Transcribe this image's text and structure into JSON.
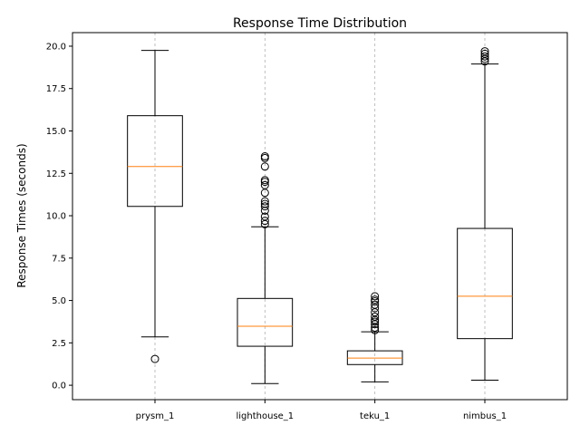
{
  "chart_data": {
    "type": "box",
    "title": "Response Time Distribution",
    "xlabel": "",
    "ylabel": "Response Times (seconds)",
    "ylim": [
      -0.85,
      20.8
    ],
    "yticks": [
      0.0,
      2.5,
      5.0,
      7.5,
      10.0,
      12.5,
      15.0,
      17.5,
      20.0
    ],
    "ytick_labels": [
      "0.0",
      "2.5",
      "5.0",
      "7.5",
      "10.0",
      "12.5",
      "15.0",
      "17.5",
      "20.0"
    ],
    "grid": "x-dashed",
    "categories": [
      "prysm_1",
      "lighthouse_1",
      "teku_1",
      "nimbus_1"
    ],
    "boxes": [
      {
        "whisker_low": 2.85,
        "q1": 10.55,
        "median": 12.9,
        "q3": 15.9,
        "whisker_high": 19.75,
        "outliers": [
          1.55
        ]
      },
      {
        "whisker_low": 0.1,
        "q1": 2.3,
        "median": 3.48,
        "q3": 5.12,
        "whisker_high": 9.35,
        "outliers": [
          9.5,
          9.7,
          9.95,
          10.3,
          10.55,
          10.7,
          10.85,
          11.35,
          11.8,
          12.0,
          12.1,
          12.9,
          13.4,
          13.5
        ]
      },
      {
        "whisker_low": 0.2,
        "q1": 1.22,
        "median": 1.6,
        "q3": 2.03,
        "whisker_high": 3.15,
        "outliers": [
          3.25,
          3.4,
          3.6,
          3.75,
          3.85,
          4.05,
          4.3,
          4.55,
          4.75,
          4.95,
          5.05,
          5.25
        ]
      },
      {
        "whisker_low": 0.3,
        "q1": 2.75,
        "median": 5.25,
        "q3": 9.25,
        "whisker_high": 18.95,
        "outliers": [
          19.1,
          19.25,
          19.4,
          19.55,
          19.7
        ]
      }
    ],
    "colors": {
      "box": "#000000",
      "median": "#ff7f0e",
      "grid": "#b0b0b0"
    }
  }
}
